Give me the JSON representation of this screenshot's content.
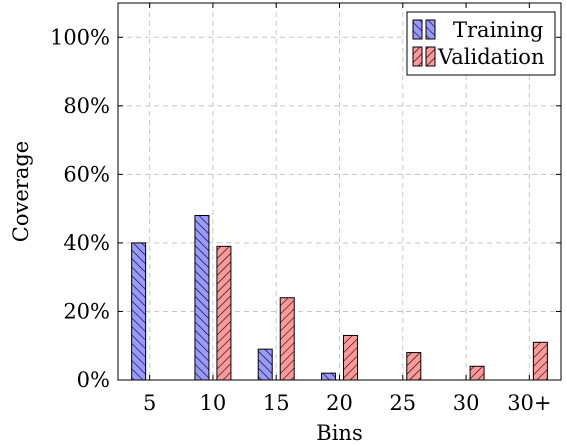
{
  "chart_data": {
    "type": "bar",
    "title": "",
    "xlabel": "Bins",
    "ylabel": "Coverage",
    "categories": [
      "5",
      "10",
      "15",
      "20",
      "25",
      "30",
      "30+"
    ],
    "series": [
      {
        "name": "Training",
        "values": [
          40,
          48,
          9,
          2,
          0,
          0,
          0
        ],
        "color": "#9999ff",
        "hatch": "north-west lines"
      },
      {
        "name": "Validation",
        "values": [
          0,
          39,
          24,
          13,
          8,
          4,
          11
        ],
        "color": "#ff9999",
        "hatch": "north-east lines"
      }
    ],
    "ylim": [
      0,
      110
    ],
    "yticks": [
      0,
      20,
      40,
      60,
      80,
      100
    ],
    "ytick_labels": [
      "0%",
      "20%",
      "40%",
      "60%",
      "80%",
      "100%"
    ],
    "grid": true,
    "legend_position": "top-right"
  }
}
